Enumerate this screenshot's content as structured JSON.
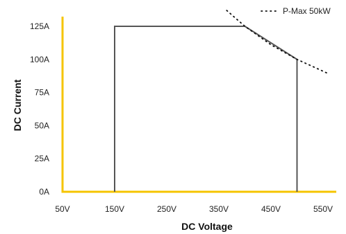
{
  "chart_data": {
    "type": "line",
    "xlabel": "DC Voltage",
    "ylabel": "DC Current",
    "xlim": [
      50,
      550
    ],
    "ylim": [
      0,
      125
    ],
    "x_ticks": [
      50,
      150,
      250,
      350,
      450,
      550
    ],
    "x_tick_labels": [
      "50V",
      "150V",
      "250V",
      "350V",
      "450V",
      "550V"
    ],
    "y_ticks": [
      0,
      25,
      50,
      75,
      100,
      125
    ],
    "y_tick_labels": [
      "0A",
      "25A",
      "50A",
      "75A",
      "100A",
      "125A"
    ],
    "axis_color": "#F5C400",
    "legend": {
      "placement": "top-right",
      "entries": [
        {
          "label": "P-Max 50kW",
          "style": "dotted",
          "color": "#111111"
        }
      ]
    },
    "series": [
      {
        "style": "solid",
        "color": "#555555",
        "x": [
          150,
          150,
          400,
          500,
          500
        ],
        "y": [
          0,
          125,
          125,
          100,
          0
        ]
      },
      {
        "name": "P-Max 50kW",
        "style": "dotted",
        "color": "#111111",
        "function": "50000 / V",
        "x": [
          365,
          400,
          450,
          500,
          560
        ],
        "y": [
          137,
          125,
          111.1,
          100,
          89.3
        ]
      }
    ],
    "grid": false
  }
}
